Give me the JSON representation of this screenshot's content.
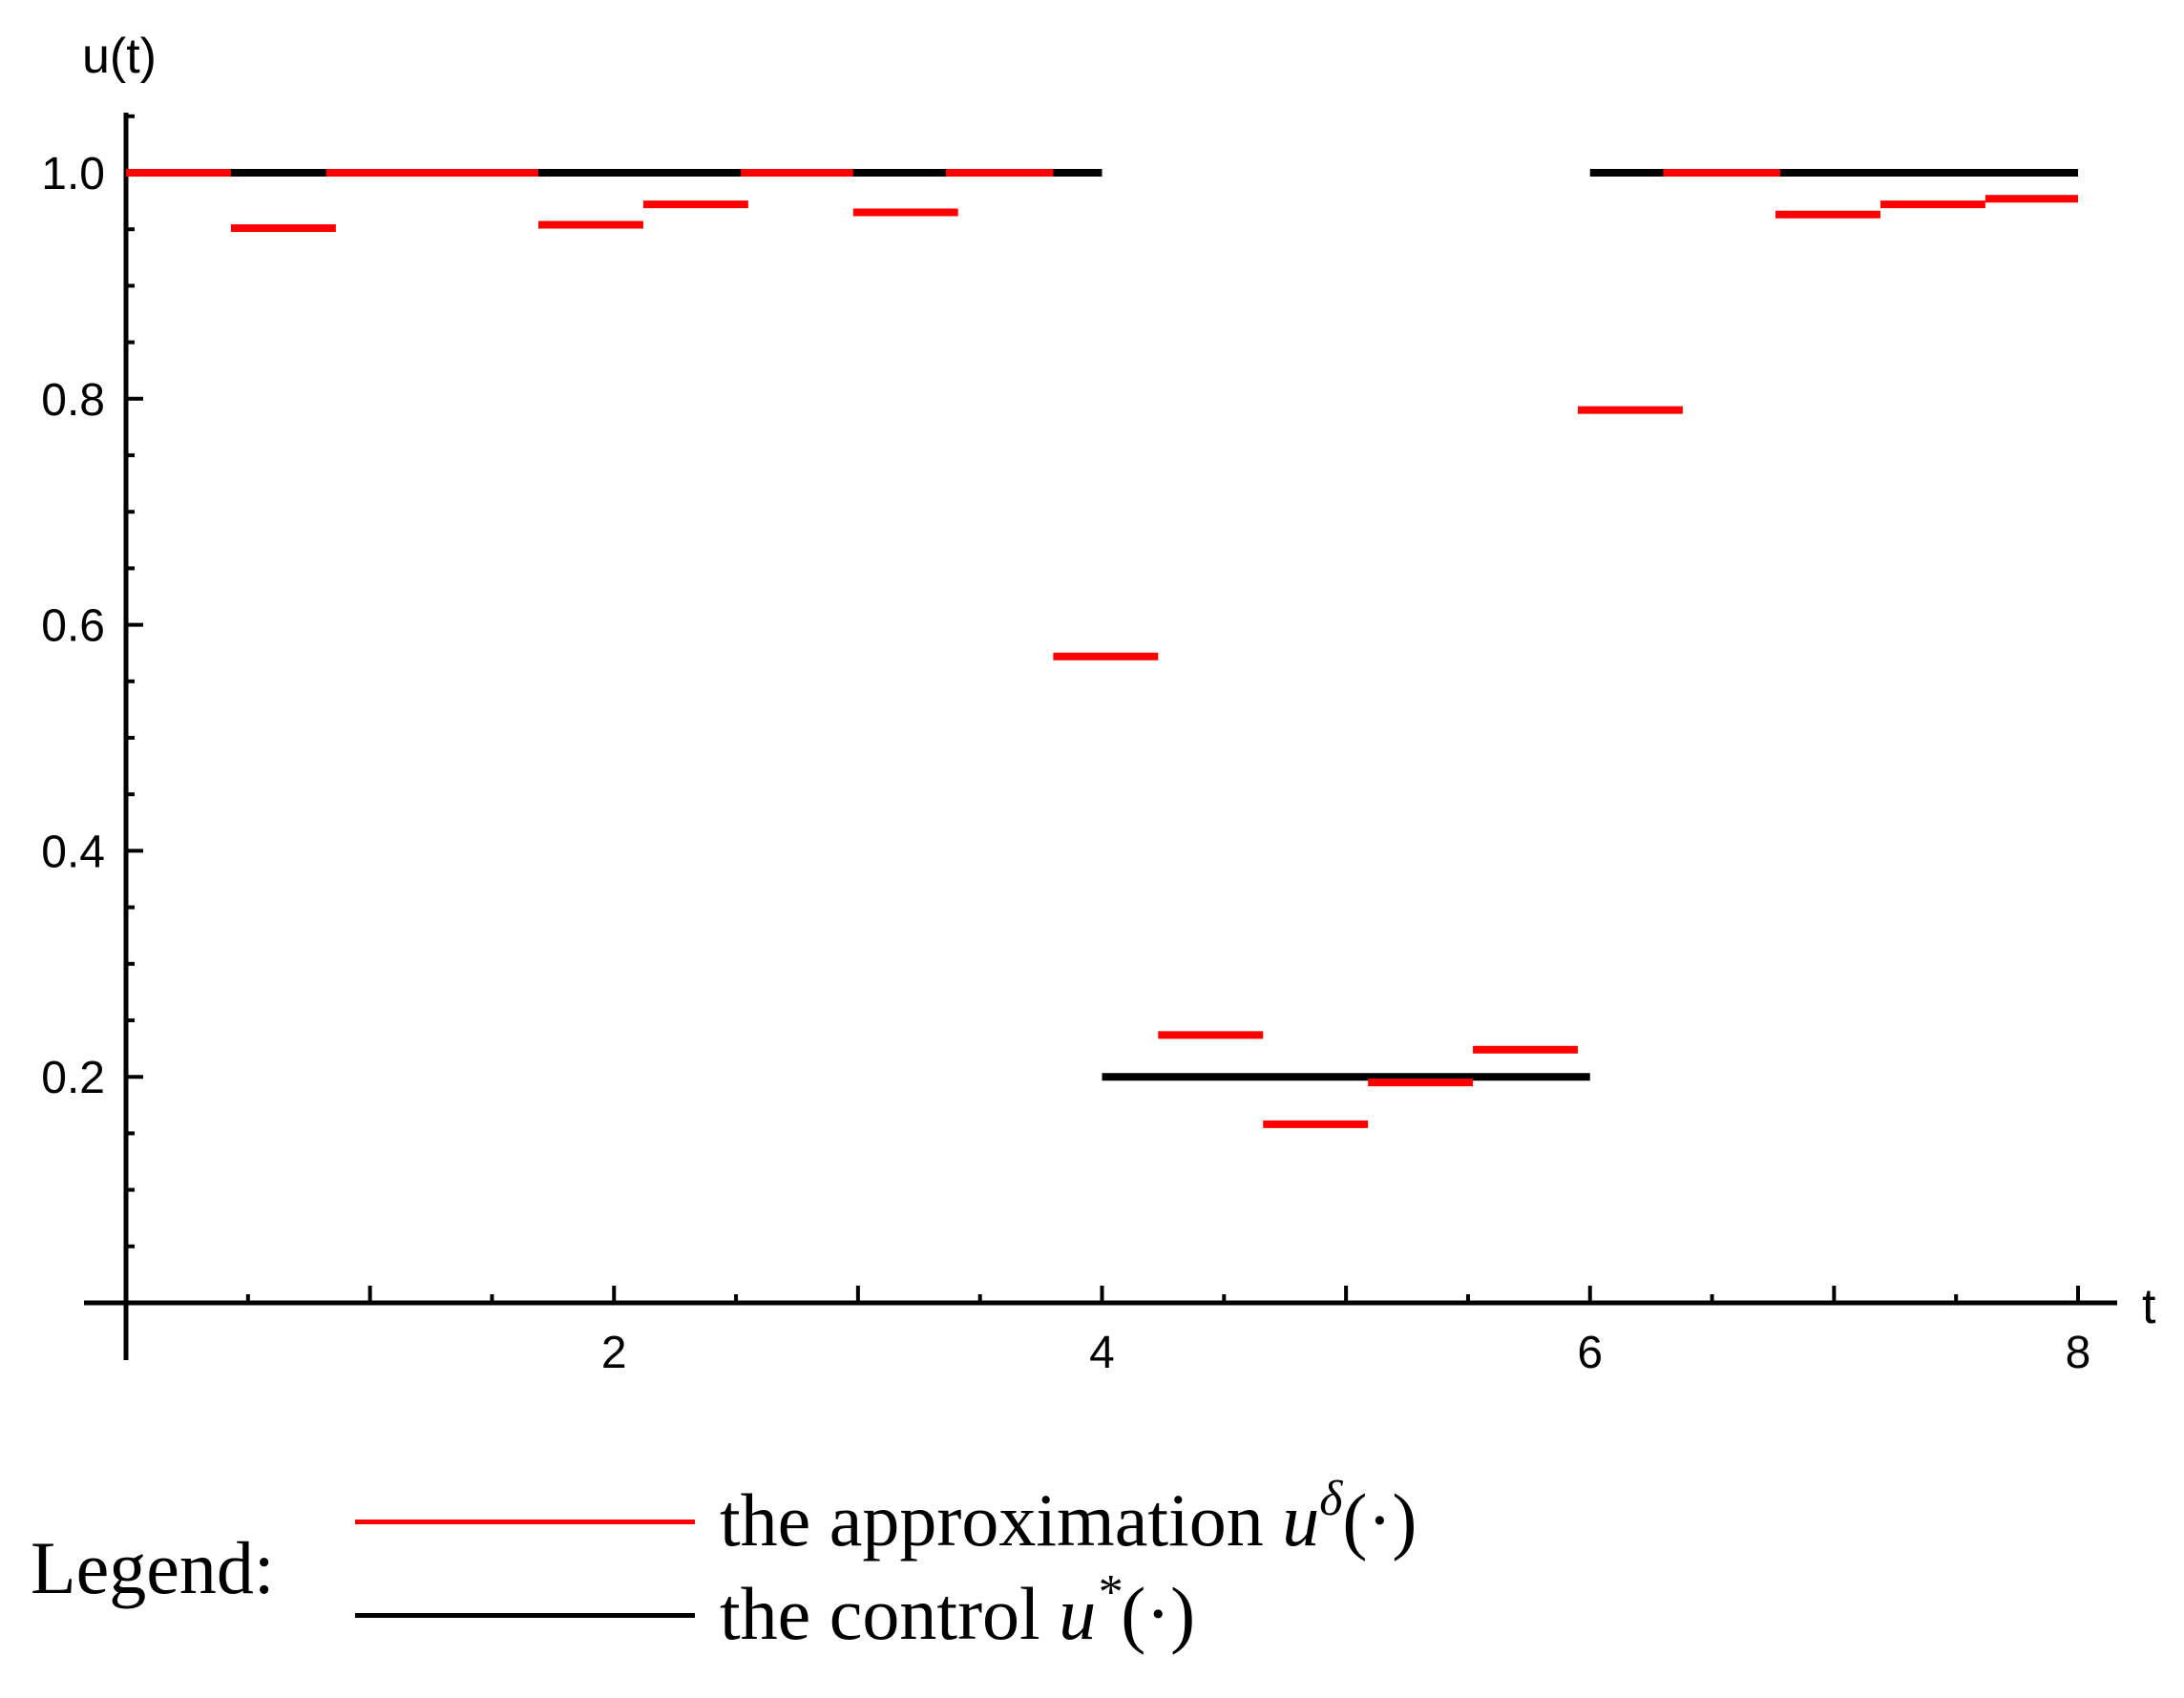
{
  "chart_data": {
    "type": "line",
    "subtype": "piecewise-constant step plot",
    "xlabel": "t",
    "ylabel": "u(t)",
    "xlim": [
      0,
      8
    ],
    "ylim": [
      0,
      1.05
    ],
    "xticks": [
      "2",
      "4",
      "6",
      "8"
    ],
    "yticks": [
      "0.2",
      "0.4",
      "0.6",
      "0.8",
      "1.0"
    ],
    "grid": false,
    "legend_position": "bottom",
    "colors": {
      "approximation": "#ff0000",
      "control": "#000000"
    },
    "series": [
      {
        "name": "the control u*(·)",
        "color": "#000000",
        "segments": [
          {
            "x0": 0.0,
            "x1": 4.0,
            "y": 1.0
          },
          {
            "x0": 4.0,
            "x1": 6.0,
            "y": 0.2
          },
          {
            "x0": 6.0,
            "x1": 8.0,
            "y": 1.0
          }
        ]
      },
      {
        "name": "the approximation uδ(·)",
        "color": "#ff0000",
        "segments": [
          {
            "x0": 0.0,
            "x1": 0.43,
            "y": 1.0
          },
          {
            "x0": 0.43,
            "x1": 0.86,
            "y": 0.951
          },
          {
            "x0": 0.82,
            "x1": 1.69,
            "y": 1.0
          },
          {
            "x0": 1.69,
            "x1": 2.12,
            "y": 0.954
          },
          {
            "x0": 2.12,
            "x1": 2.55,
            "y": 0.972
          },
          {
            "x0": 2.52,
            "x1": 2.98,
            "y": 1.0
          },
          {
            "x0": 2.98,
            "x1": 3.41,
            "y": 0.965
          },
          {
            "x0": 3.36,
            "x1": 3.8,
            "y": 1.0
          },
          {
            "x0": 3.8,
            "x1": 4.23,
            "y": 0.572
          },
          {
            "x0": 4.23,
            "x1": 4.66,
            "y": 0.237
          },
          {
            "x0": 4.66,
            "x1": 5.09,
            "y": 0.158
          },
          {
            "x0": 5.09,
            "x1": 5.52,
            "y": 0.195
          },
          {
            "x0": 5.52,
            "x1": 5.95,
            "y": 0.224
          },
          {
            "x0": 5.95,
            "x1": 6.38,
            "y": 0.79
          },
          {
            "x0": 6.3,
            "x1": 6.78,
            "y": 1.0
          },
          {
            "x0": 6.76,
            "x1": 7.19,
            "y": 0.963
          },
          {
            "x0": 7.19,
            "x1": 7.62,
            "y": 0.972
          },
          {
            "x0": 7.62,
            "x1": 8.0,
            "y": 0.977
          }
        ]
      }
    ]
  },
  "legend": {
    "heading": "Legend:",
    "approximation_text": "the approximation ",
    "approximation_symbol": "u",
    "approximation_sup": "δ",
    "approximation_arg": "(·)",
    "control_text": "the control ",
    "control_symbol": "u",
    "control_sup": "*",
    "control_arg": "(·)"
  }
}
